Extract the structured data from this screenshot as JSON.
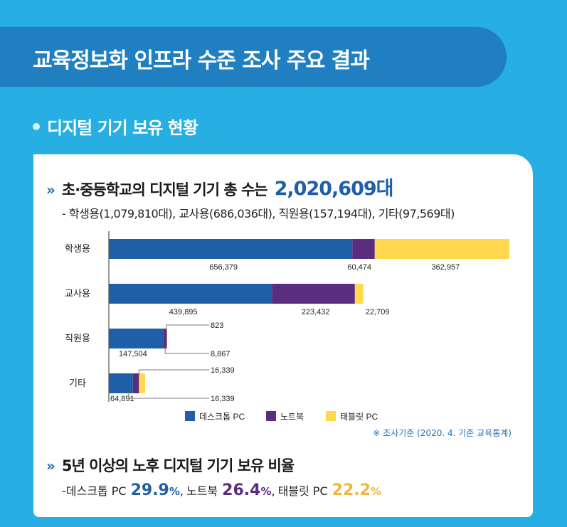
{
  "banner": {
    "title": "교육정보화 인프라 수준 조사 주요 결과"
  },
  "section": {
    "title": "디지털 기기 보유 현황"
  },
  "card": {
    "chevron": "»",
    "headline_prefix": "초·중등학교의 디지털 기기 총 수는",
    "headline_total": "2,020,609대",
    "subline": "- 학생용(1,079,810대), 교사용(686,036대), 직원용(157,194대), 기타(97,569대)",
    "source_note": "※ 조사기준 (2020. 4. 기준 교육통계)",
    "headline2": "5년 이상의 노후 디지털 기기 보유 비율",
    "ratio_prefix": "- ",
    "ratio_items": [
      {
        "label": "데스크톱 PC",
        "value": "29.9",
        "unit": "%",
        "sep": ",",
        "color": "#1f5fa8"
      },
      {
        "label": "노트북",
        "value": "26.4",
        "unit": "%",
        "sep": ",",
        "color": "#5b2d7e"
      },
      {
        "label": "태블릿 PC",
        "value": "22.2",
        "unit": "%",
        "sep": "",
        "color": "#f3b43a"
      }
    ]
  },
  "chart_data": {
    "type": "bar",
    "orientation": "horizontal",
    "stacked": true,
    "categories": [
      "학생용",
      "교사용",
      "직원용",
      "기타"
    ],
    "series": [
      {
        "name": "데스크톱 PC",
        "values": [
          656379,
          439895,
          147504,
          64891
        ],
        "color": "#1f5fa8"
      },
      {
        "name": "노트북",
        "values": [
          60474,
          223432,
          8867,
          16339
        ],
        "color": "#5b2d7e"
      },
      {
        "name": "태블릿 PC",
        "values": [
          362957,
          22709,
          823,
          16339
        ],
        "color": "#ffd84d"
      }
    ],
    "data_labels": [
      [
        "656,379",
        "60,474",
        "362,957"
      ],
      [
        "439,895",
        "223,432",
        "22,709"
      ],
      [
        "147,504",
        "8,867",
        "823"
      ],
      [
        "64,891",
        "16,339",
        "16,339"
      ]
    ],
    "legend_position": "bottom",
    "grid": false,
    "xlim": [
      0,
      1079810
    ]
  }
}
